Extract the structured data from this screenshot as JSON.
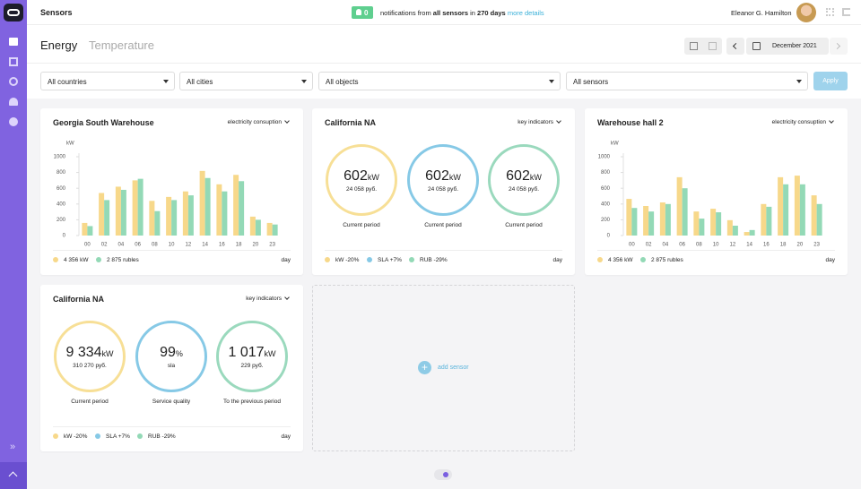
{
  "header": {
    "title": "Sensors",
    "notifications": {
      "count": 0,
      "text": "notifications from",
      "scope": "all sensors",
      "joiner": "in",
      "span": "270 days",
      "link": "more details"
    },
    "user": "Eleanor G. Hamilton"
  },
  "tabs": [
    "Energy",
    "Temperature"
  ],
  "period": "December 2021",
  "filters": [
    "All countries",
    "All cities",
    "All objects",
    "All sensors"
  ],
  "apply": "Apply",
  "widgets": [
    {
      "title": "Georgia South Warehouse",
      "dropdown": "electricity consuption",
      "period": "day",
      "chart_data": {
        "type": "bar",
        "y_label": "kW",
        "categories": [
          "00",
          "02",
          "04",
          "06",
          "08",
          "10",
          "12",
          "14",
          "16",
          "18",
          "20",
          "23"
        ],
        "ylim": [
          0,
          1000
        ],
        "yticks": [
          0,
          200,
          400,
          600,
          800,
          1000
        ],
        "series": [
          {
            "name": "4 356 kW",
            "color": "#f7d88a",
            "values": [
              160,
              540,
              620,
              700,
              440,
              490,
              560,
              820,
              650,
              770,
              240,
              160
            ]
          },
          {
            "name": "2 875 rubles",
            "color": "#93d9b6",
            "values": [
              120,
              450,
              580,
              720,
              310,
              450,
              510,
              730,
              560,
              690,
              200,
              140
            ]
          }
        ]
      }
    },
    {
      "title": "California NA",
      "dropdown": "key indicators",
      "period": "day",
      "kpis": [
        {
          "value": "602",
          "unit": "kW",
          "sub": "24 058 руб.",
          "caption": "Current period",
          "color": "#f7df96"
        },
        {
          "value": "602",
          "unit": "kW",
          "sub": "24 058 руб.",
          "caption": "Current period",
          "color": "#86c9e6"
        },
        {
          "value": "602",
          "unit": "kW",
          "sub": "24 058 руб.",
          "caption": "Current period",
          "color": "#9ad9bd"
        }
      ],
      "legend": [
        {
          "label": "kW -20%",
          "color": "#f7d88a"
        },
        {
          "label": "SLA +7%",
          "color": "#86c9e6"
        },
        {
          "label": "RUB -29%",
          "color": "#93d9b6"
        }
      ]
    },
    {
      "title": "Warehouse hall 2",
      "dropdown": "electricity consuption",
      "period": "day",
      "chart_data": {
        "type": "bar",
        "y_label": "kW",
        "categories": [
          "00",
          "02",
          "04",
          "06",
          "08",
          "10",
          "12",
          "14",
          "16",
          "18",
          "20",
          "23"
        ],
        "ylim": [
          0,
          1000
        ],
        "yticks": [
          0,
          200,
          400,
          600,
          800,
          1000
        ],
        "series": [
          {
            "name": "4 356 kW",
            "color": "#f7d88a",
            "values": [
              465,
              375,
              420,
              740,
              305,
              340,
              195,
              45,
              400,
              740,
              760,
              510
            ]
          },
          {
            "name": "2 875 rubles",
            "color": "#93d9b6",
            "values": [
              350,
              305,
              400,
              600,
              215,
              295,
              125,
              70,
              365,
              650,
              650,
              400
            ]
          }
        ]
      }
    },
    {
      "title": "California NA",
      "dropdown": "key indicators",
      "period": "day",
      "kpis": [
        {
          "value": "9 334",
          "unit": "kW",
          "sub": "310 270 руб.",
          "caption": "Current period",
          "color": "#f7df96"
        },
        {
          "value": "99",
          "unit": "%",
          "sub": "sla",
          "caption": "Service quality",
          "color": "#86c9e6"
        },
        {
          "value": "1 017",
          "unit": "kW",
          "sub": "229 руб.",
          "caption": "To the previous period",
          "color": "#9ad9bd"
        }
      ],
      "legend": [
        {
          "label": "kW -20%",
          "color": "#f7d88a"
        },
        {
          "label": "SLA +7%",
          "color": "#86c9e6"
        },
        {
          "label": "RUB -29%",
          "color": "#93d9b6"
        }
      ]
    }
  ],
  "add_sensor": "add sensor"
}
